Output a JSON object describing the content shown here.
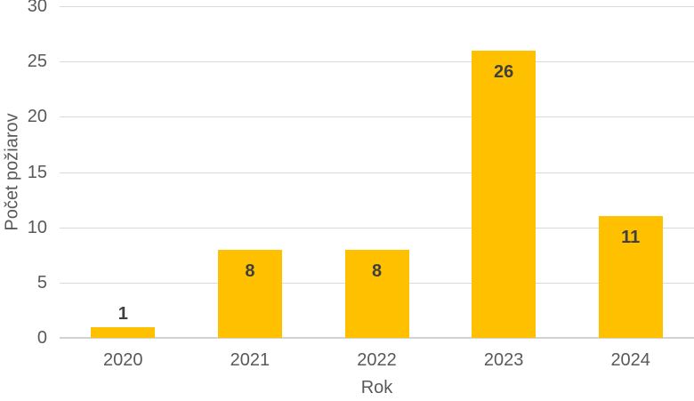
{
  "chart_data": {
    "type": "bar",
    "title": "",
    "categories": [
      "2020",
      "2021",
      "2022",
      "2023",
      "2024"
    ],
    "values": [
      1,
      8,
      8,
      26,
      11
    ],
    "data_labels": [
      "1",
      "8",
      "8",
      "26",
      "11"
    ],
    "xlabel": "Rok",
    "ylabel": "Počet požiarov",
    "ylim": [
      0,
      30
    ],
    "yticks": [
      0,
      5,
      10,
      15,
      20,
      25,
      30
    ],
    "grid": "horizontal",
    "legend": "none",
    "colors": {
      "bar_fill": "#FFC000",
      "value_label": "#404040",
      "axis_text": "#595959",
      "gridline": "#D9D9D9",
      "axis_line": "#D2D2D2"
    }
  }
}
